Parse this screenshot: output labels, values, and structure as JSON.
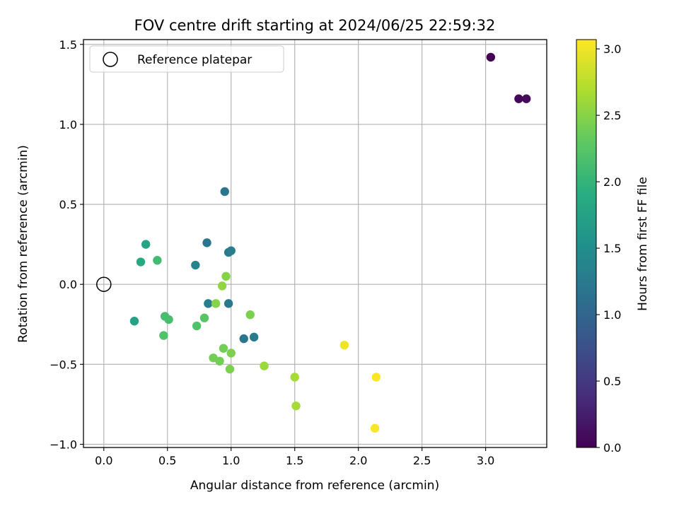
{
  "chart_data": {
    "type": "scatter",
    "title": "FOV centre drift starting at 2024/06/25 22:59:32",
    "xlabel": "Angular distance from reference (arcmin)",
    "ylabel": "Rotation from reference (arcmin)",
    "xlim": [
      -0.16,
      3.48
    ],
    "ylim": [
      -1.02,
      1.53
    ],
    "xticks": [
      0.0,
      0.5,
      1.0,
      1.5,
      2.0,
      2.5,
      3.0
    ],
    "xtick_labels": [
      "0.0",
      "0.5",
      "1.0",
      "1.5",
      "2.0",
      "2.5",
      "3.0"
    ],
    "yticks": [
      -1.0,
      -0.5,
      0.0,
      0.5,
      1.0,
      1.5
    ],
    "ytick_labels": [
      "−1.0",
      "−0.5",
      "0.0",
      "0.5",
      "1.0",
      "1.5"
    ],
    "grid": true,
    "legend": {
      "label": "Reference platepar",
      "position": "top-left"
    },
    "reference_point": {
      "x": 0.0,
      "y": 0.0
    },
    "colorbar": {
      "label": "Hours from first FF file",
      "range": [
        0.0,
        3.07
      ],
      "ticks": [
        0.0,
        0.5,
        1.0,
        1.5,
        2.0,
        2.5,
        3.0
      ],
      "tick_labels": [
        "0.0",
        "0.5",
        "1.0",
        "1.5",
        "2.0",
        "2.5",
        "3.0"
      ],
      "colormap": "viridis"
    },
    "points": [
      {
        "x": 3.04,
        "y": 1.42,
        "hours": 0.0
      },
      {
        "x": 3.26,
        "y": 1.16,
        "hours": 0.05
      },
      {
        "x": 3.32,
        "y": 1.16,
        "hours": 0.1
      },
      {
        "x": 0.95,
        "y": 0.58,
        "hours": 1.2
      },
      {
        "x": 0.81,
        "y": 0.26,
        "hours": 1.2
      },
      {
        "x": 0.98,
        "y": 0.2,
        "hours": 1.25
      },
      {
        "x": 1.0,
        "y": 0.21,
        "hours": 1.3
      },
      {
        "x": 0.72,
        "y": 0.12,
        "hours": 1.35
      },
      {
        "x": 0.82,
        "y": -0.12,
        "hours": 1.3
      },
      {
        "x": 0.98,
        "y": -0.12,
        "hours": 1.25
      },
      {
        "x": 1.1,
        "y": -0.34,
        "hours": 1.2
      },
      {
        "x": 1.18,
        "y": -0.33,
        "hours": 1.25
      },
      {
        "x": 0.33,
        "y": 0.25,
        "hours": 1.8
      },
      {
        "x": 0.29,
        "y": 0.14,
        "hours": 1.85
      },
      {
        "x": 0.24,
        "y": -0.23,
        "hours": 1.75
      },
      {
        "x": 0.42,
        "y": 0.15,
        "hours": 2.1
      },
      {
        "x": 0.48,
        "y": -0.2,
        "hours": 2.15
      },
      {
        "x": 0.51,
        "y": -0.22,
        "hours": 2.15
      },
      {
        "x": 0.47,
        "y": -0.32,
        "hours": 2.2
      },
      {
        "x": 0.73,
        "y": -0.26,
        "hours": 2.2
      },
      {
        "x": 0.79,
        "y": -0.21,
        "hours": 2.25
      },
      {
        "x": 0.96,
        "y": 0.05,
        "hours": 2.5
      },
      {
        "x": 0.93,
        "y": -0.01,
        "hours": 2.55
      },
      {
        "x": 0.88,
        "y": -0.12,
        "hours": 2.5
      },
      {
        "x": 1.15,
        "y": -0.19,
        "hours": 2.45
      },
      {
        "x": 0.86,
        "y": -0.46,
        "hours": 2.4
      },
      {
        "x": 0.91,
        "y": -0.48,
        "hours": 2.4
      },
      {
        "x": 0.94,
        "y": -0.4,
        "hours": 2.4
      },
      {
        "x": 1.0,
        "y": -0.43,
        "hours": 2.45
      },
      {
        "x": 0.99,
        "y": -0.53,
        "hours": 2.45
      },
      {
        "x": 1.26,
        "y": -0.51,
        "hours": 2.6
      },
      {
        "x": 1.5,
        "y": -0.58,
        "hours": 2.65
      },
      {
        "x": 1.51,
        "y": -0.76,
        "hours": 2.65
      },
      {
        "x": 1.89,
        "y": -0.38,
        "hours": 3.0
      },
      {
        "x": 2.14,
        "y": -0.58,
        "hours": 3.05
      },
      {
        "x": 2.13,
        "y": -0.9,
        "hours": 3.05
      }
    ]
  }
}
